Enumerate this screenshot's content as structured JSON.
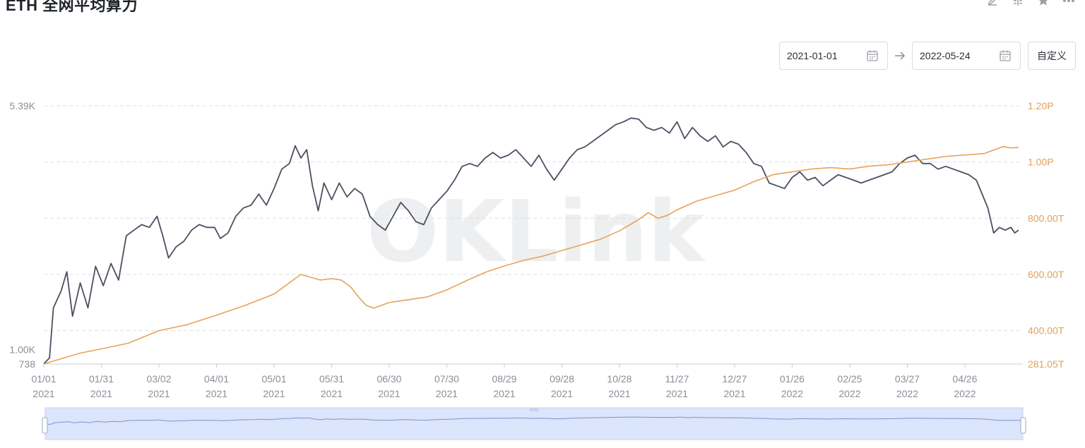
{
  "header": {
    "title": "ETH 全网平均算力",
    "toolbar_icons": [
      "edit-icon",
      "compare-icon",
      "star-icon",
      "more-icon"
    ]
  },
  "date_range": {
    "start": "2021-01-01",
    "end": "2022-05-24",
    "custom_label": "自定义"
  },
  "watermark": "OKLink",
  "colors": {
    "left_series": "#4b5060",
    "right_series": "#e6a35a",
    "grid": "#dcdfe4",
    "axis_text": "#8a8f98",
    "right_axis_text": "#e0a25c",
    "navigator_fill": "#dbe5fb",
    "navigator_line": "#7f95c9"
  },
  "chart_data": {
    "type": "line",
    "title": "ETH 全网平均算力",
    "x_range": [
      "2021-01-01",
      "2022-05-24"
    ],
    "x_ticks": [
      {
        "date": "2021-01-01",
        "label": [
          "01/01",
          "2021"
        ]
      },
      {
        "date": "2021-01-31",
        "label": [
          "01/31",
          "2021"
        ]
      },
      {
        "date": "2021-03-02",
        "label": [
          "03/02",
          "2021"
        ]
      },
      {
        "date": "2021-04-01",
        "label": [
          "04/01",
          "2021"
        ]
      },
      {
        "date": "2021-05-01",
        "label": [
          "05/01",
          "2021"
        ]
      },
      {
        "date": "2021-05-31",
        "label": [
          "05/31",
          "2021"
        ]
      },
      {
        "date": "2021-06-30",
        "label": [
          "06/30",
          "2021"
        ]
      },
      {
        "date": "2021-07-30",
        "label": [
          "07/30",
          "2021"
        ]
      },
      {
        "date": "2021-08-29",
        "label": [
          "08/29",
          "2021"
        ]
      },
      {
        "date": "2021-09-28",
        "label": [
          "09/28",
          "2021"
        ]
      },
      {
        "date": "2021-10-28",
        "label": [
          "10/28",
          "2021"
        ]
      },
      {
        "date": "2021-11-27",
        "label": [
          "11/27",
          "2021"
        ]
      },
      {
        "date": "2021-12-27",
        "label": [
          "12/27",
          "2021"
        ]
      },
      {
        "date": "2022-01-26",
        "label": [
          "01/26",
          "2022"
        ]
      },
      {
        "date": "2022-02-25",
        "label": [
          "02/25",
          "2022"
        ]
      },
      {
        "date": "2022-03-27",
        "label": [
          "03/27",
          "2022"
        ]
      },
      {
        "date": "2022-04-26",
        "label": [
          "04/26",
          "2022"
        ]
      }
    ],
    "y_left": {
      "range": [
        738,
        5390
      ],
      "tick_labels": [
        {
          "value": 5390,
          "label": "5.39K"
        },
        {
          "value": 1000,
          "label": "1.00K"
        },
        {
          "value": 738,
          "label": "738"
        }
      ]
    },
    "y_right": {
      "range": [
        281.05,
        1200
      ],
      "unit": "T",
      "tick_labels": [
        {
          "value": 1200,
          "label": "1.20P"
        },
        {
          "value": 1000,
          "label": "1.00P"
        },
        {
          "value": 800,
          "label": "800.00T"
        },
        {
          "value": 600,
          "label": "600.00T"
        },
        {
          "value": 400,
          "label": "400.00T"
        },
        {
          "value": 281.05,
          "label": "281.05T"
        }
      ]
    },
    "grid": true,
    "series": [
      {
        "axis": "left",
        "color": "#4b5060",
        "points": [
          [
            "2021-01-01",
            740
          ],
          [
            "2021-01-04",
            850
          ],
          [
            "2021-01-06",
            1750
          ],
          [
            "2021-01-10",
            2050
          ],
          [
            "2021-01-13",
            2400
          ],
          [
            "2021-01-16",
            1600
          ],
          [
            "2021-01-20",
            2200
          ],
          [
            "2021-01-24",
            1750
          ],
          [
            "2021-01-28",
            2500
          ],
          [
            "2021-02-01",
            2150
          ],
          [
            "2021-02-05",
            2550
          ],
          [
            "2021-02-09",
            2250
          ],
          [
            "2021-02-13",
            3050
          ],
          [
            "2021-02-17",
            3150
          ],
          [
            "2021-02-21",
            3250
          ],
          [
            "2021-02-25",
            3200
          ],
          [
            "2021-03-01",
            3400
          ],
          [
            "2021-03-04",
            3050
          ],
          [
            "2021-03-07",
            2650
          ],
          [
            "2021-03-11",
            2850
          ],
          [
            "2021-03-15",
            2950
          ],
          [
            "2021-03-19",
            3150
          ],
          [
            "2021-03-23",
            3250
          ],
          [
            "2021-03-27",
            3200
          ],
          [
            "2021-03-31",
            3200
          ],
          [
            "2021-04-03",
            3000
          ],
          [
            "2021-04-07",
            3100
          ],
          [
            "2021-04-11",
            3400
          ],
          [
            "2021-04-15",
            3550
          ],
          [
            "2021-04-19",
            3600
          ],
          [
            "2021-04-23",
            3800
          ],
          [
            "2021-04-27",
            3600
          ],
          [
            "2021-05-01",
            3900
          ],
          [
            "2021-05-05",
            4250
          ],
          [
            "2021-05-09",
            4350
          ],
          [
            "2021-05-12",
            4670
          ],
          [
            "2021-05-15",
            4450
          ],
          [
            "2021-05-18",
            4600
          ],
          [
            "2021-05-21",
            3950
          ],
          [
            "2021-05-24",
            3500
          ],
          [
            "2021-05-27",
            4000
          ],
          [
            "2021-05-31",
            3700
          ],
          [
            "2021-06-04",
            4000
          ],
          [
            "2021-06-08",
            3750
          ],
          [
            "2021-06-12",
            3900
          ],
          [
            "2021-06-16",
            3800
          ],
          [
            "2021-06-20",
            3400
          ],
          [
            "2021-06-24",
            3250
          ],
          [
            "2021-06-28",
            3150
          ],
          [
            "2021-07-02",
            3400
          ],
          [
            "2021-07-06",
            3650
          ],
          [
            "2021-07-10",
            3500
          ],
          [
            "2021-07-14",
            3300
          ],
          [
            "2021-07-18",
            3250
          ],
          [
            "2021-07-22",
            3550
          ],
          [
            "2021-07-26",
            3700
          ],
          [
            "2021-07-30",
            3850
          ],
          [
            "2021-08-03",
            4050
          ],
          [
            "2021-08-07",
            4300
          ],
          [
            "2021-08-11",
            4350
          ],
          [
            "2021-08-15",
            4300
          ],
          [
            "2021-08-19",
            4450
          ],
          [
            "2021-08-23",
            4550
          ],
          [
            "2021-08-27",
            4450
          ],
          [
            "2021-08-31",
            4500
          ],
          [
            "2021-09-04",
            4600
          ],
          [
            "2021-09-08",
            4450
          ],
          [
            "2021-09-12",
            4300
          ],
          [
            "2021-09-16",
            4500
          ],
          [
            "2021-09-20",
            4250
          ],
          [
            "2021-09-24",
            4050
          ],
          [
            "2021-09-28",
            4250
          ],
          [
            "2021-10-02",
            4450
          ],
          [
            "2021-10-06",
            4600
          ],
          [
            "2021-10-10",
            4650
          ],
          [
            "2021-10-14",
            4750
          ],
          [
            "2021-10-18",
            4850
          ],
          [
            "2021-10-22",
            4950
          ],
          [
            "2021-10-26",
            5050
          ],
          [
            "2021-10-30",
            5100
          ],
          [
            "2021-11-03",
            5170
          ],
          [
            "2021-11-07",
            5150
          ],
          [
            "2021-11-11",
            5000
          ],
          [
            "2021-11-15",
            4950
          ],
          [
            "2021-11-19",
            5000
          ],
          [
            "2021-11-23",
            4900
          ],
          [
            "2021-11-27",
            5100
          ],
          [
            "2021-12-01",
            4800
          ],
          [
            "2021-12-05",
            5000
          ],
          [
            "2021-12-09",
            4850
          ],
          [
            "2021-12-13",
            4750
          ],
          [
            "2021-12-17",
            4850
          ],
          [
            "2021-12-21",
            4650
          ],
          [
            "2021-12-25",
            4750
          ],
          [
            "2021-12-29",
            4700
          ],
          [
            "2022-01-02",
            4550
          ],
          [
            "2022-01-06",
            4350
          ],
          [
            "2022-01-10",
            4300
          ],
          [
            "2022-01-14",
            4000
          ],
          [
            "2022-01-18",
            3950
          ],
          [
            "2022-01-22",
            3900
          ],
          [
            "2022-01-26",
            4100
          ],
          [
            "2022-01-30",
            4200
          ],
          [
            "2022-02-03",
            4050
          ],
          [
            "2022-02-07",
            4100
          ],
          [
            "2022-02-11",
            3950
          ],
          [
            "2022-02-15",
            4050
          ],
          [
            "2022-02-19",
            4150
          ],
          [
            "2022-02-23",
            4100
          ],
          [
            "2022-02-27",
            4050
          ],
          [
            "2022-03-03",
            4000
          ],
          [
            "2022-03-07",
            4050
          ],
          [
            "2022-03-11",
            4100
          ],
          [
            "2022-03-15",
            4150
          ],
          [
            "2022-03-19",
            4200
          ],
          [
            "2022-03-23",
            4350
          ],
          [
            "2022-03-27",
            4450
          ],
          [
            "2022-03-31",
            4500
          ],
          [
            "2022-04-04",
            4350
          ],
          [
            "2022-04-08",
            4350
          ],
          [
            "2022-04-12",
            4250
          ],
          [
            "2022-04-16",
            4300
          ],
          [
            "2022-04-20",
            4250
          ],
          [
            "2022-04-24",
            4200
          ],
          [
            "2022-04-28",
            4150
          ],
          [
            "2022-05-02",
            4050
          ],
          [
            "2022-05-05",
            3800
          ],
          [
            "2022-05-08",
            3550
          ],
          [
            "2022-05-11",
            3100
          ],
          [
            "2022-05-14",
            3200
          ],
          [
            "2022-05-17",
            3150
          ],
          [
            "2022-05-20",
            3200
          ],
          [
            "2022-05-22",
            3100
          ],
          [
            "2022-05-24",
            3150
          ]
        ]
      },
      {
        "axis": "right",
        "color": "#e6a35a",
        "points": [
          [
            "2021-01-01",
            281
          ],
          [
            "2021-01-10",
            300
          ],
          [
            "2021-01-20",
            320
          ],
          [
            "2021-01-31",
            335
          ],
          [
            "2021-02-14",
            355
          ],
          [
            "2021-03-02",
            400
          ],
          [
            "2021-03-16",
            420
          ],
          [
            "2021-04-01",
            455
          ],
          [
            "2021-04-16",
            490
          ],
          [
            "2021-05-01",
            530
          ],
          [
            "2021-05-10",
            575
          ],
          [
            "2021-05-15",
            600
          ],
          [
            "2021-05-20",
            590
          ],
          [
            "2021-05-25",
            580
          ],
          [
            "2021-05-31",
            585
          ],
          [
            "2021-06-05",
            580
          ],
          [
            "2021-06-10",
            555
          ],
          [
            "2021-06-14",
            520
          ],
          [
            "2021-06-18",
            490
          ],
          [
            "2021-06-22",
            480
          ],
          [
            "2021-06-30",
            500
          ],
          [
            "2021-07-10",
            510
          ],
          [
            "2021-07-20",
            520
          ],
          [
            "2021-07-30",
            545
          ],
          [
            "2021-08-10",
            580
          ],
          [
            "2021-08-20",
            610
          ],
          [
            "2021-08-29",
            630
          ],
          [
            "2021-09-08",
            650
          ],
          [
            "2021-09-18",
            665
          ],
          [
            "2021-09-28",
            685
          ],
          [
            "2021-10-08",
            705
          ],
          [
            "2021-10-18",
            725
          ],
          [
            "2021-10-28",
            755
          ],
          [
            "2021-11-07",
            795
          ],
          [
            "2021-11-12",
            820
          ],
          [
            "2021-11-17",
            800
          ],
          [
            "2021-11-22",
            810
          ],
          [
            "2021-11-27",
            830
          ],
          [
            "2021-12-07",
            860
          ],
          [
            "2021-12-17",
            880
          ],
          [
            "2021-12-27",
            900
          ],
          [
            "2022-01-06",
            930
          ],
          [
            "2022-01-16",
            955
          ],
          [
            "2022-01-26",
            965
          ],
          [
            "2022-02-05",
            975
          ],
          [
            "2022-02-15",
            980
          ],
          [
            "2022-02-25",
            975
          ],
          [
            "2022-03-07",
            985
          ],
          [
            "2022-03-17",
            990
          ],
          [
            "2022-03-27",
            1000
          ],
          [
            "2022-04-06",
            1010
          ],
          [
            "2022-04-16",
            1020
          ],
          [
            "2022-04-26",
            1025
          ],
          [
            "2022-05-06",
            1030
          ],
          [
            "2022-05-12",
            1045
          ],
          [
            "2022-05-16",
            1055
          ],
          [
            "2022-05-20",
            1050
          ],
          [
            "2022-05-24",
            1052
          ]
        ]
      }
    ]
  }
}
